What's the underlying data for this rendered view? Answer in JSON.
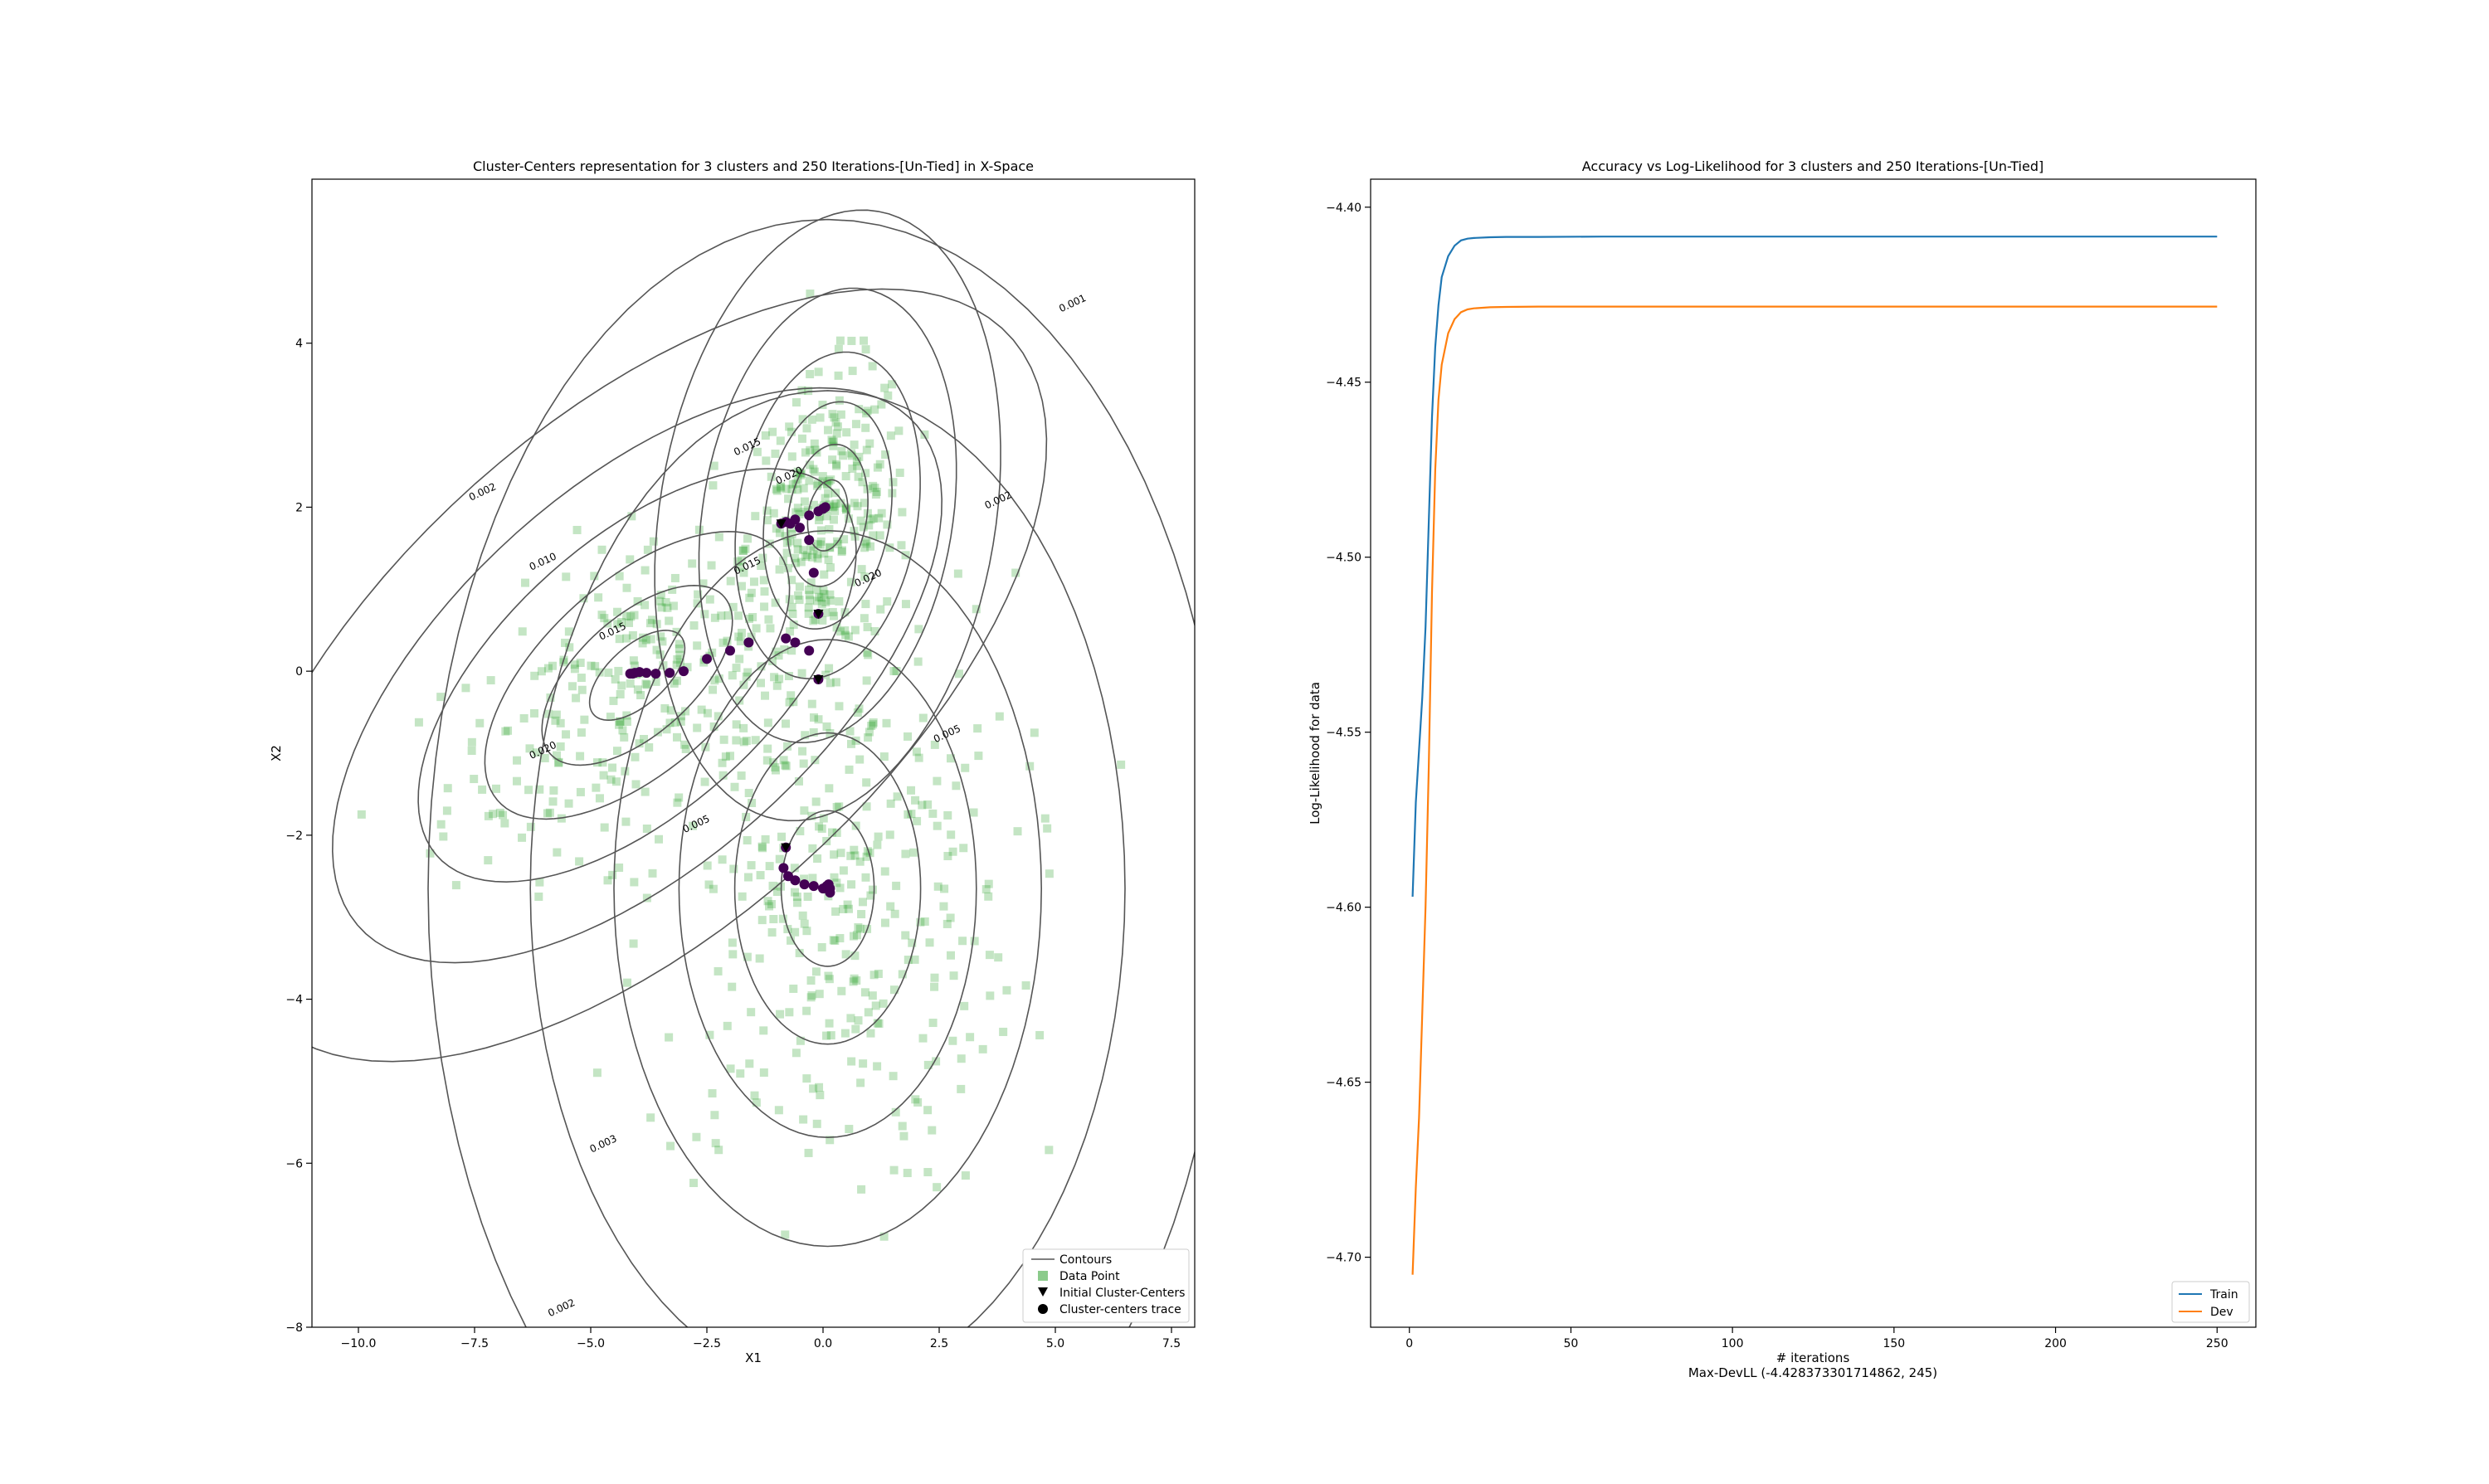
{
  "chart_data": [
    {
      "type": "scatter",
      "title": "Cluster-Centers representation for 3 clusters and 250 Iterations-[Un-Tied] in X-Space",
      "xlabel": "X1",
      "ylabel": "X2",
      "xlim": [
        -11,
        8
      ],
      "ylim": [
        -8,
        6
      ],
      "xticks": [
        -10,
        -7.5,
        -5,
        -2.5,
        0,
        2.5,
        5,
        7.5
      ],
      "xtick_labels": [
        "−10.0",
        "−7.5",
        "−5.0",
        "−2.5",
        "0.0",
        "2.5",
        "5.0",
        "7.5"
      ],
      "yticks": [
        -8,
        -6,
        -4,
        -2,
        0,
        2,
        4
      ],
      "ytick_labels": [
        "−8",
        "−6",
        "−4",
        "−2",
        "0",
        "2",
        "4"
      ],
      "legend": {
        "position": "bottom-right",
        "entries": [
          "Contours",
          "Data Point",
          "Initial Cluster-Centers",
          "Cluster-centers trace"
        ]
      },
      "colors": {
        "data_point": "#2ca02c",
        "trace": "#440154",
        "contour": "#555555",
        "initial": "#000000"
      },
      "clusters": [
        {
          "mean": [
            -4.0,
            -0.05
          ],
          "cov": [
            [
              4.2,
              1.35
            ],
            [
              1.35,
              1.2
            ]
          ],
          "n": 260
        },
        {
          "mean": [
            0.1,
            1.9
          ],
          "cov": [
            [
              0.75,
              0.15
            ],
            [
              0.15,
              0.75
            ]
          ],
          "n": 260
        },
        {
          "mean": [
            0.1,
            -2.65
          ],
          "cov": [
            [
              4.0,
              0.0
            ],
            [
              0.0,
              3.6
            ]
          ],
          "n": 380
        }
      ],
      "initial_centers": [
        [
          -0.1,
          0.7
        ],
        [
          -0.1,
          -0.1
        ],
        [
          -0.9,
          1.8
        ],
        [
          -0.8,
          -2.15
        ]
      ],
      "traces": [
        [
          [
            -0.1,
            -0.1
          ],
          [
            -0.3,
            0.25
          ],
          [
            -0.6,
            0.35
          ],
          [
            -0.8,
            0.4
          ],
          [
            -1.6,
            0.35
          ],
          [
            -2.0,
            0.25
          ],
          [
            -2.5,
            0.15
          ],
          [
            -3.0,
            0.0
          ],
          [
            -3.3,
            -0.02
          ],
          [
            -3.6,
            -0.03
          ],
          [
            -3.8,
            -0.02
          ],
          [
            -3.95,
            -0.01
          ],
          [
            -4.05,
            -0.02
          ],
          [
            -4.1,
            -0.03
          ],
          [
            -4.15,
            -0.03
          ]
        ],
        [
          [
            -0.1,
            0.7
          ],
          [
            -0.2,
            1.2
          ],
          [
            -0.3,
            1.6
          ],
          [
            -0.5,
            1.75
          ],
          [
            -0.7,
            1.8
          ],
          [
            -0.8,
            1.82
          ],
          [
            -0.6,
            1.85
          ],
          [
            -0.3,
            1.9
          ],
          [
            -0.1,
            1.95
          ],
          [
            0.0,
            1.98
          ],
          [
            0.05,
            2.0
          ],
          [
            -0.9,
            1.8
          ]
        ],
        [
          [
            -0.8,
            -2.15
          ],
          [
            -0.85,
            -2.4
          ],
          [
            -0.75,
            -2.5
          ],
          [
            -0.6,
            -2.55
          ],
          [
            -0.4,
            -2.6
          ],
          [
            -0.2,
            -2.62
          ],
          [
            0.0,
            -2.65
          ],
          [
            0.08,
            -2.62
          ],
          [
            0.12,
            -2.6
          ],
          [
            0.15,
            -2.65
          ],
          [
            0.15,
            -2.7
          ]
        ]
      ],
      "contour_labels": [
        {
          "text": "0.001",
          "x": 5.4,
          "y": 4.45
        },
        {
          "text": "0.002",
          "x": -7.3,
          "y": 2.15
        },
        {
          "text": "0.002",
          "x": 3.8,
          "y": 2.05
        },
        {
          "text": "0.002",
          "x": -5.6,
          "y": -7.8
        },
        {
          "text": "0.010",
          "x": -6.0,
          "y": 1.3
        },
        {
          "text": "0.015",
          "x": -1.6,
          "y": 2.7
        },
        {
          "text": "0.020",
          "x": -0.7,
          "y": 2.35
        },
        {
          "text": "0.015",
          "x": -1.6,
          "y": 1.25
        },
        {
          "text": "0.015",
          "x": -4.5,
          "y": 0.45
        },
        {
          "text": "0.020",
          "x": -6.0,
          "y": -1.0
        },
        {
          "text": "0.005",
          "x": -2.7,
          "y": -1.9
        },
        {
          "text": "0.005",
          "x": 2.7,
          "y": -0.8
        },
        {
          "text": "0.003",
          "x": -4.7,
          "y": -5.8
        },
        {
          "text": "0.020",
          "x": 1.0,
          "y": 1.1
        }
      ]
    },
    {
      "type": "line",
      "title": "Accuracy vs Log-Likelihood for 3 clusters and 250 Iterations-[Un-Tied]",
      "xlabel": "# iterations",
      "xlabel_note": "Max-DevLL (-4.428373301714862, 245)",
      "ylabel": "Log-Likelihood for data",
      "xlim": [
        -12,
        262
      ],
      "ylim": [
        -4.72,
        -4.392
      ],
      "xticks": [
        0,
        50,
        100,
        150,
        200,
        250
      ],
      "xtick_labels": [
        "0",
        "50",
        "100",
        "150",
        "200",
        "250"
      ],
      "yticks": [
        -4.7,
        -4.65,
        -4.6,
        -4.55,
        -4.5,
        -4.45,
        -4.4
      ],
      "ytick_labels": [
        "−4.70",
        "−4.65",
        "−4.60",
        "−4.55",
        "−4.50",
        "−4.45",
        "−4.40"
      ],
      "legend": {
        "position": "bottom-right",
        "entries": [
          "Train",
          "Dev"
        ]
      },
      "series": [
        {
          "name": "Train",
          "color": "#1f77b4",
          "x": [
            1,
            2,
            3,
            4,
            5,
            6,
            7,
            8,
            9,
            10,
            12,
            14,
            16,
            18,
            20,
            25,
            30,
            40,
            60,
            100,
            150,
            200,
            250
          ],
          "values": [
            -4.597,
            -4.57,
            -4.555,
            -4.54,
            -4.52,
            -4.49,
            -4.46,
            -4.44,
            -4.428,
            -4.42,
            -4.414,
            -4.411,
            -4.4095,
            -4.409,
            -4.4088,
            -4.4086,
            -4.4085,
            -4.4085,
            -4.4084,
            -4.4084,
            -4.4084,
            -4.4084,
            -4.4084
          ]
        },
        {
          "name": "Dev",
          "color": "#ff7f0e",
          "x": [
            1,
            2,
            3,
            4,
            5,
            6,
            7,
            8,
            9,
            10,
            12,
            14,
            16,
            18,
            20,
            25,
            30,
            40,
            60,
            100,
            150,
            200,
            250
          ],
          "values": [
            -4.705,
            -4.68,
            -4.66,
            -4.63,
            -4.6,
            -4.56,
            -4.51,
            -4.475,
            -4.455,
            -4.445,
            -4.436,
            -4.432,
            -4.43,
            -4.4292,
            -4.4289,
            -4.4286,
            -4.4285,
            -4.4284,
            -4.4284,
            -4.4284,
            -4.4284,
            -4.4284,
            -4.4284
          ]
        }
      ]
    }
  ]
}
